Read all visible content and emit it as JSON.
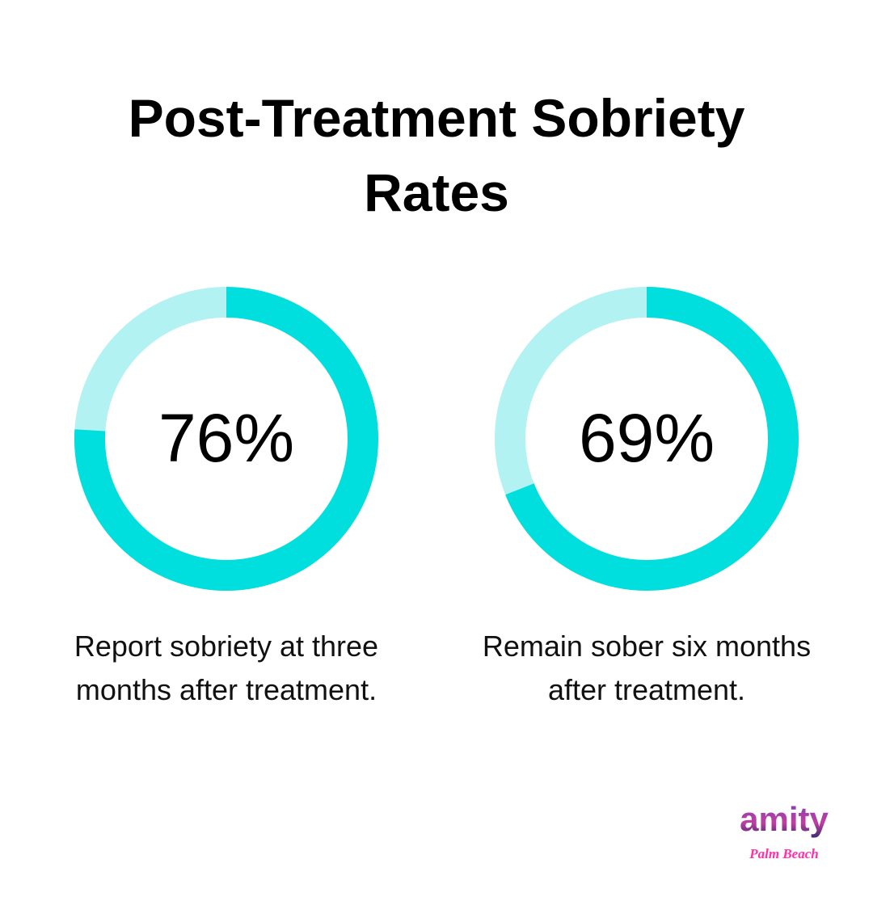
{
  "chart_data": [
    {
      "type": "pie",
      "variant": "donut",
      "value": 76,
      "max": 100,
      "center_label": "76%",
      "caption": "Report sobriety at three months after treatment.",
      "caption_lines": [
        "Report sobriety at three",
        "months after treatment."
      ],
      "colors": {
        "filled": "#00DEDE",
        "remaining": "#B3F2F2"
      }
    },
    {
      "type": "pie",
      "variant": "donut",
      "value": 69,
      "max": 100,
      "center_label": "69%",
      "caption": "Remain sober six months after treatment.",
      "caption_lines": [
        "Remain sober six months",
        "after treatment."
      ],
      "colors": {
        "filled": "#00DEDE",
        "remaining": "#B3F2F2"
      }
    }
  ],
  "title_lines": [
    "Post-Treatment Sobriety",
    "Rates"
  ],
  "logo": {
    "text": "amity",
    "subtext": "Palm Beach"
  }
}
